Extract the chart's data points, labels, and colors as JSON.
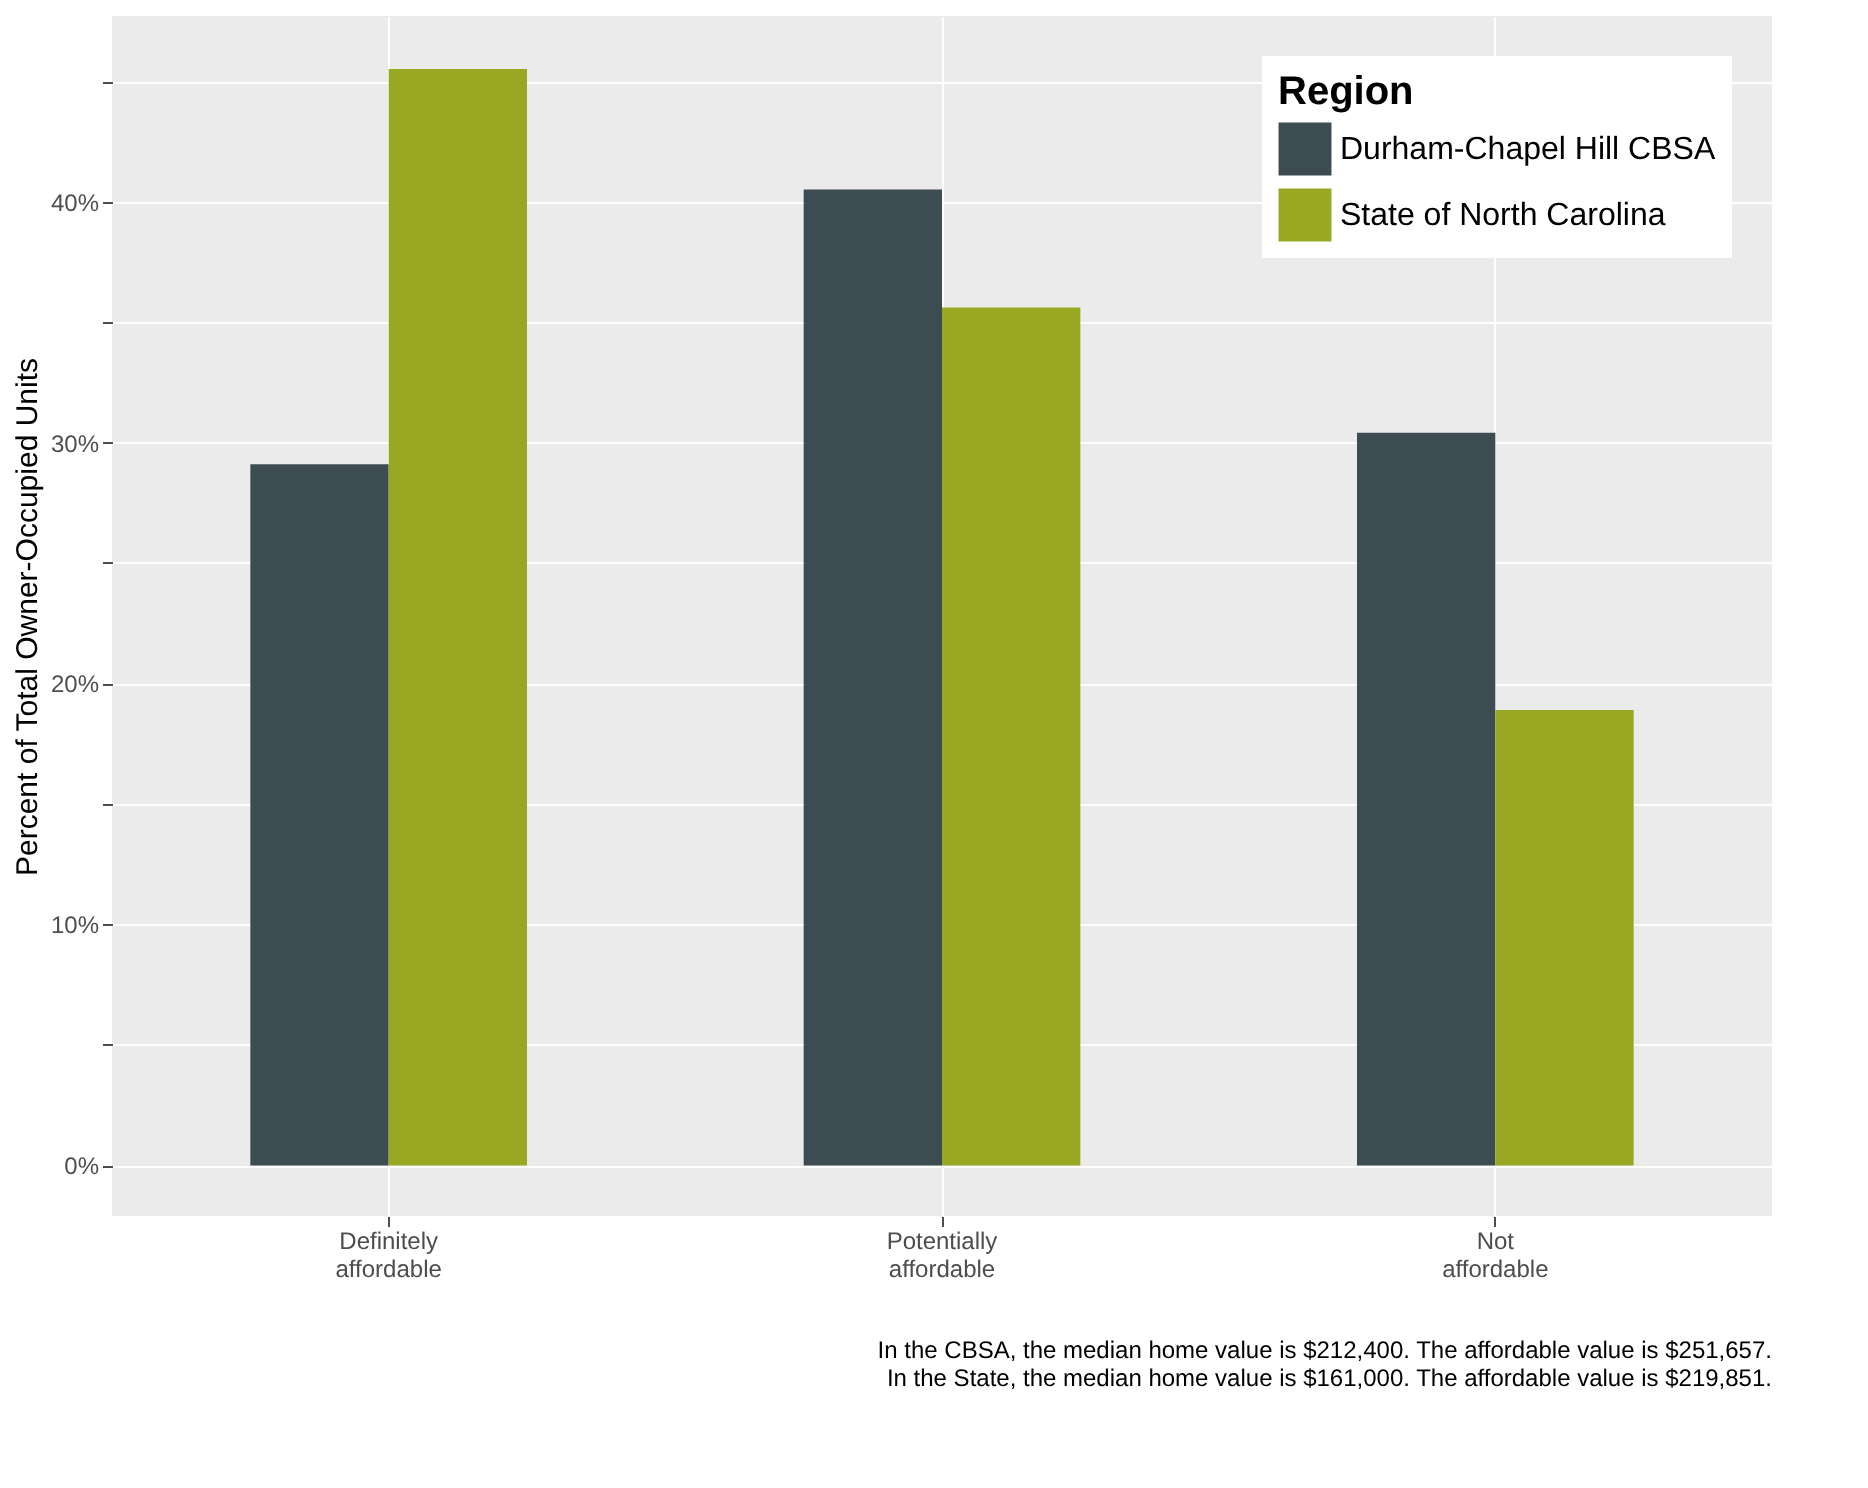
{
  "chart_data": {
    "type": "bar",
    "categories": [
      "Definitely\naffordable",
      "Potentially\naffordable",
      "Not\naffordable"
    ],
    "series": [
      {
        "name": "Durham-Chapel Hill CBSA",
        "color": "#3d4b53",
        "values": [
          29.1,
          40.5,
          30.4
        ]
      },
      {
        "name": "State of North Carolina",
        "color": "#98a823",
        "values": [
          45.5,
          35.6,
          18.9
        ]
      }
    ],
    "ylabel": "Percent of Total Owner-Occupied Units",
    "legend_title": "Region",
    "legend": "top right",
    "grid": true,
    "ylim": [
      -2.1,
      47.7
    ],
    "yticks": [
      {
        "value": 0,
        "label": "0%"
      },
      {
        "value": 5,
        "label": null
      },
      {
        "value": 10,
        "label": "10%"
      },
      {
        "value": 15,
        "label": null
      },
      {
        "value": 20,
        "label": "20%"
      },
      {
        "value": 25,
        "label": null
      },
      {
        "value": 30,
        "label": "30%"
      },
      {
        "value": 35,
        "label": null
      },
      {
        "value": 40,
        "label": "40%"
      },
      {
        "value": 45,
        "label": null
      }
    ],
    "annotations": [
      "In the CBSA, the median home value is $212,400. The affordable value is $251,657.",
      "In the State, the median home value is $161,000. The affordable value is $219,851."
    ]
  }
}
